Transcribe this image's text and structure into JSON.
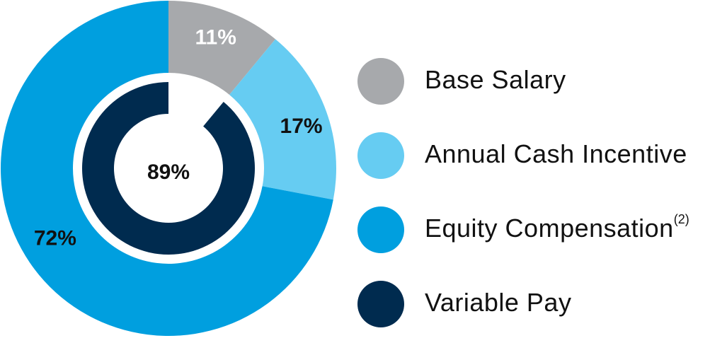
{
  "chart_data": {
    "type": "pie",
    "outer_ring": {
      "slices": [
        {
          "label": "Base Salary",
          "value": 11,
          "display": "11%",
          "color": "#A7A9AC",
          "label_color": "#ffffff"
        },
        {
          "label": "Annual Cash Incentive",
          "value": 17,
          "display": "17%",
          "color": "#66CCF2",
          "label_color": "#111111"
        },
        {
          "label": "Equity Compensation",
          "value": 72,
          "display": "72%",
          "color": "#009FDF",
          "label_color": "#111111"
        }
      ]
    },
    "inner_ring": {
      "slices": [
        {
          "label": "Variable Pay",
          "value": 89,
          "display": "89%",
          "color": "#002B4F"
        }
      ],
      "center_label": "89%"
    },
    "legend": [
      {
        "label": "Base Salary",
        "footnote": "",
        "color": "#A7A9AC"
      },
      {
        "label": "Annual Cash Incentive",
        "footnote": "",
        "color": "#66CCF2"
      },
      {
        "label": "Equity Compensation",
        "footnote": "(2)",
        "color": "#009FDF"
      },
      {
        "label": "Variable Pay",
        "footnote": "",
        "color": "#002B4F"
      }
    ],
    "legend_position": "right"
  }
}
